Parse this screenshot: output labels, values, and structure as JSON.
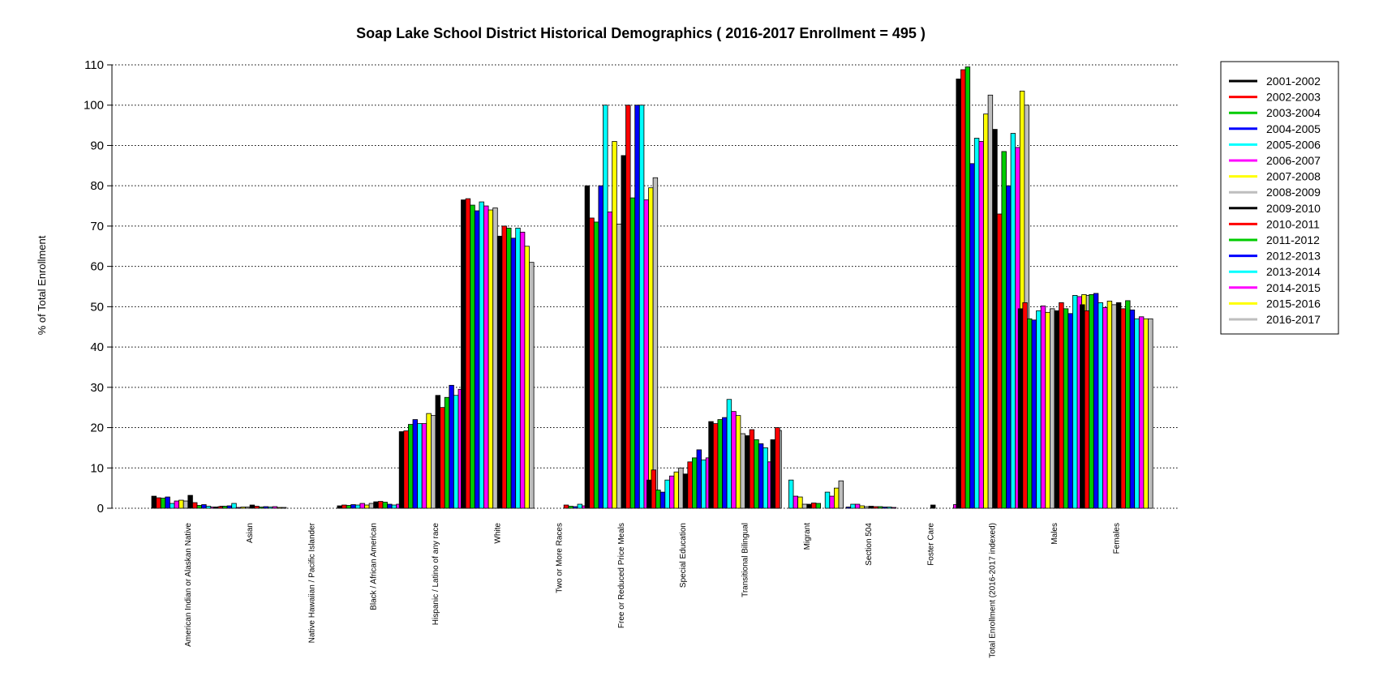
{
  "chart_data": {
    "type": "bar",
    "title": "Soap Lake School District Historical Demographics  ( 2016-2017 Enrollment =  495 )",
    "ylabel": "% of Total Enrollment",
    "xlabel": "",
    "ylim": [
      0,
      110
    ],
    "yticks": [
      0,
      10,
      20,
      30,
      40,
      50,
      60,
      70,
      80,
      90,
      100,
      110
    ],
    "grid": "horizontal dotted",
    "legend_position": "right",
    "categories": [
      "American Indian or Alaskan Native",
      "Asian",
      "Native Hawaiian / Pacific Islander",
      "Black / African American",
      "Hispanic / Latino of any race",
      "White",
      "Two or More Races",
      "Free or Reduced Price Meals",
      "Special Education",
      "Transitional Bilingual",
      "Migrant",
      "Section 504",
      "Foster Care",
      "Total Enrollment (2016-2017 indexed)",
      "Males",
      "Females"
    ],
    "series": [
      {
        "name": "2001-2002",
        "color": "#000000",
        "values": [
          3.0,
          0.3,
          0.0,
          0.6,
          19.0,
          76.5,
          0.0,
          80.0,
          7.0,
          21.5,
          17.0,
          0.0,
          0.0,
          106.5,
          49.5,
          50.5
        ]
      },
      {
        "name": "2002-2003",
        "color": "#ff0000",
        "values": [
          2.6,
          0.4,
          0.0,
          0.8,
          19.2,
          76.8,
          0.0,
          72.0,
          9.5,
          21.0,
          20.0,
          0.0,
          0.0,
          108.8,
          51.0,
          49.0
        ]
      },
      {
        "name": "2003-2004",
        "color": "#00cc00",
        "values": [
          2.5,
          0.5,
          0.0,
          0.7,
          20.8,
          75.2,
          0.0,
          71.0,
          4.5,
          22.0,
          0.0,
          0.0,
          0.0,
          109.5,
          47.0,
          53.0
        ]
      },
      {
        "name": "2004-2005",
        "color": "#0000ff",
        "values": [
          2.8,
          0.6,
          0.0,
          0.9,
          22.0,
          73.8,
          0.0,
          80.0,
          4.0,
          22.5,
          0.0,
          0.3,
          0.0,
          85.5,
          46.7,
          53.3
        ]
      },
      {
        "name": "2005-2006",
        "color": "#00ffff",
        "values": [
          1.2,
          1.2,
          0.0,
          0.8,
          21.0,
          76.0,
          0.0,
          100.0,
          7.0,
          27.0,
          7.0,
          1.0,
          0.0,
          91.8,
          49.0,
          51.0
        ]
      },
      {
        "name": "2006-2007",
        "color": "#ff00ff",
        "values": [
          1.8,
          0.2,
          0.0,
          1.2,
          21.0,
          75.0,
          0.0,
          73.5,
          8.0,
          24.0,
          3.0,
          1.0,
          0.0,
          91.0,
          50.2,
          49.8
        ]
      },
      {
        "name": "2007-2008",
        "color": "#ffff00",
        "values": [
          2.0,
          0.3,
          0.0,
          0.8,
          23.5,
          74.0,
          0.0,
          91.0,
          9.0,
          23.0,
          2.8,
          0.6,
          0.0,
          97.8,
          48.6,
          51.4
        ]
      },
      {
        "name": "2008-2009",
        "color": "#bebebe",
        "values": [
          1.8,
          0.3,
          0.0,
          1.2,
          23.0,
          74.5,
          0.0,
          70.5,
          10.0,
          18.5,
          1.0,
          0.4,
          0.0,
          102.5,
          49.5,
          50.5
        ]
      },
      {
        "name": "2009-2010",
        "color": "#000000",
        "values": [
          3.2,
          0.8,
          0.0,
          1.6,
          28.0,
          67.5,
          0.0,
          87.5,
          8.5,
          18.0,
          1.0,
          0.5,
          0.8,
          94.0,
          49.0,
          51.0
        ]
      },
      {
        "name": "2010-2011",
        "color": "#ff0000",
        "values": [
          1.4,
          0.5,
          0.0,
          1.7,
          25.0,
          70.0,
          0.8,
          100.0,
          11.5,
          19.5,
          1.3,
          0.4,
          0.0,
          73.0,
          51.0,
          49.5
        ]
      },
      {
        "name": "2011-2012",
        "color": "#00cc00",
        "values": [
          0.7,
          0.3,
          0.0,
          1.5,
          27.5,
          69.5,
          0.5,
          77.0,
          12.5,
          17.0,
          1.2,
          0.4,
          0.0,
          88.5,
          49.5,
          51.5
        ]
      },
      {
        "name": "2012-2013",
        "color": "#0000ff",
        "values": [
          0.9,
          0.4,
          0.0,
          1.0,
          30.5,
          67.0,
          0.4,
          100.0,
          14.5,
          16.0,
          0.0,
          0.3,
          0.0,
          80.0,
          48.3,
          49.2
        ]
      },
      {
        "name": "2013-2014",
        "color": "#00ffff",
        "values": [
          0.5,
          0.3,
          0.0,
          0.8,
          28.0,
          69.5,
          1.0,
          100.0,
          12.0,
          15.0,
          4.0,
          0.3,
          0.0,
          93.0,
          52.8,
          47.0
        ]
      },
      {
        "name": "2014-2015",
        "color": "#ff00ff",
        "values": [
          0.3,
          0.4,
          0.0,
          1.0,
          29.5,
          68.5,
          0.6,
          76.5,
          12.5,
          11.5,
          3.0,
          0.2,
          0.9,
          89.5,
          52.5,
          47.5
        ]
      },
      {
        "name": "2015-2016",
        "color": "#ffff00",
        "values": [
          0.3,
          0.2,
          0.2,
          1.2,
          32.0,
          65.0,
          1.0,
          79.5,
          14.5,
          16.0,
          5.0,
          0.0,
          0.0,
          103.5,
          53.0,
          47.0
        ]
      },
      {
        "name": "2016-2017",
        "color": "#bebebe",
        "values": [
          0.5,
          0.2,
          0.2,
          1.6,
          35.5,
          61.0,
          1.0,
          82.0,
          14.7,
          19.3,
          6.8,
          0.0,
          0.0,
          100.0,
          52.8,
          47.0
        ]
      }
    ]
  }
}
